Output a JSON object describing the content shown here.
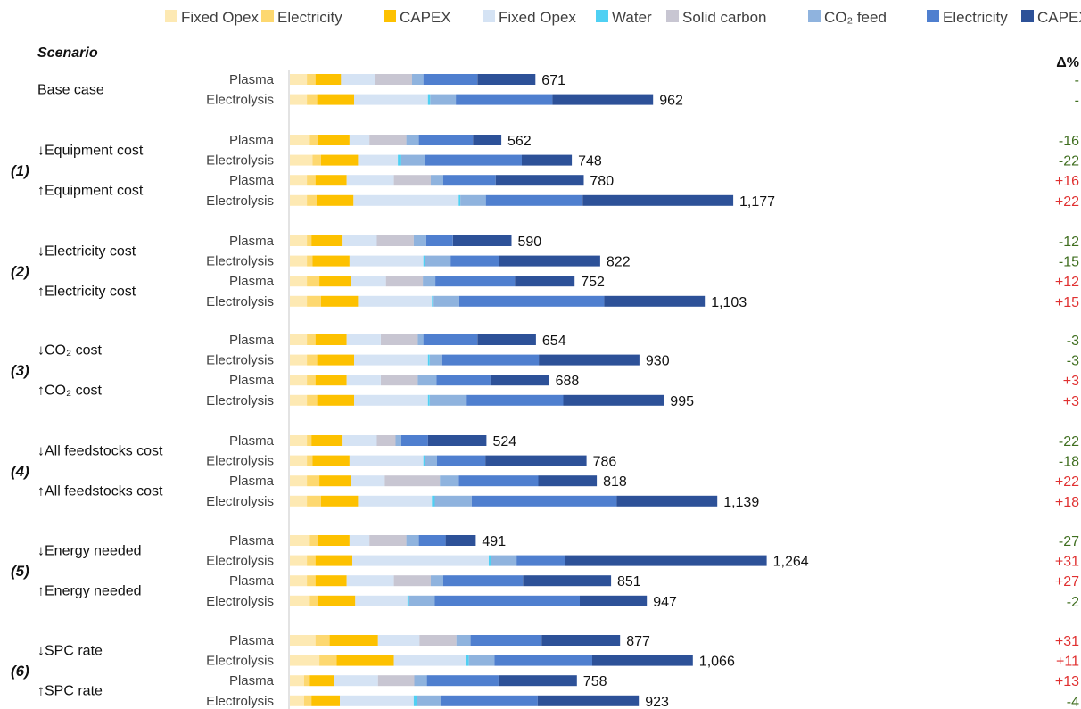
{
  "chart_data": {
    "type": "bar",
    "orientation": "horizontal",
    "stacked": true,
    "scenario_header": "Scenario",
    "delta_header": "Δ%",
    "legend": [
      {
        "name": "Fixed Opex",
        "color": "#fde9b3"
      },
      {
        "name": "Electricity",
        "color": "#fdd870"
      },
      {
        "name": "CAPEX",
        "color": "#fdc100"
      },
      {
        "name": "Fixed Opex",
        "color": "#d5e3f4"
      },
      {
        "name": "Water",
        "color": "#4fd0f3"
      },
      {
        "name": "Solid carbon",
        "color": "#c8c6d2"
      },
      {
        "name": "CO₂ feed",
        "color": "#8fb3de"
      },
      {
        "name": "Electricity",
        "color": "#4f7fcf"
      },
      {
        "name": "CAPEX",
        "color": "#2d5198"
      }
    ],
    "groups": [
      {
        "num": "",
        "scenarios": [
          {
            "label": "Base case",
            "rows": [
              {
                "tech": "Plasma",
                "total": "671",
                "delta": "-",
                "segments": [
                  30,
                  15,
                  45,
                  60,
                  0,
                  65,
                  20,
                  95,
                  102
                ]
              },
              {
                "tech": "Electrolysis",
                "total": "962",
                "delta": "-",
                "segments": [
                  30,
                  18,
                  65,
                  130,
                  4,
                  0,
                  45,
                  170,
                  177
                ]
              }
            ]
          }
        ]
      },
      {
        "num": "(1)",
        "scenarios": [
          {
            "label": "↓Equipment cost",
            "rows": [
              {
                "tech": "Plasma",
                "total": "562",
                "delta": "-16",
                "segments": [
                  35,
                  15,
                  55,
                  35,
                  0,
                  65,
                  22,
                  95,
                  50
                ]
              },
              {
                "tech": "Electrolysis",
                "total": "748",
                "delta": "-22",
                "segments": [
                  40,
                  15,
                  65,
                  70,
                  6,
                  0,
                  42,
                  170,
                  88
                ]
              }
            ]
          },
          {
            "label": "↑Equipment cost",
            "rows": [
              {
                "tech": "Plasma",
                "total": "780",
                "delta": "+16",
                "segments": [
                  30,
                  15,
                  55,
                  83,
                  0,
                  65,
                  22,
                  92,
                  155
                ]
              },
              {
                "tech": "Electrolysis",
                "total": "1,177",
                "delta": "+22",
                "segments": [
                  30,
                  17,
                  65,
                  185,
                  3,
                  0,
                  45,
                  170,
                  265
                ]
              }
            ]
          }
        ]
      },
      {
        "num": "(2)",
        "scenarios": [
          {
            "label": "↓Electricity cost",
            "rows": [
              {
                "tech": "Plasma",
                "total": "590",
                "delta": "-12",
                "segments": [
                  30,
                  8,
                  55,
                  60,
                  0,
                  65,
                  22,
                  47,
                  103
                ]
              },
              {
                "tech": "Electrolysis",
                "total": "822",
                "delta": "-15",
                "segments": [
                  30,
                  10,
                  65,
                  130,
                  3,
                  0,
                  45,
                  85,
                  178
                ]
              }
            ]
          },
          {
            "label": "↑Electricity cost",
            "rows": [
              {
                "tech": "Plasma",
                "total": "752",
                "delta": "+12",
                "segments": [
                  30,
                  22,
                  55,
                  62,
                  0,
                  65,
                  22,
                  140,
                  105
                ]
              },
              {
                "tech": "Electrolysis",
                "total": "1,103",
                "delta": "+15",
                "segments": [
                  30,
                  25,
                  65,
                  130,
                  3,
                  0,
                  45,
                  255,
                  177
                ]
              }
            ]
          }
        ]
      },
      {
        "num": "(3)",
        "scenarios": [
          {
            "label": "↓CO₂ cost",
            "rows": [
              {
                "tech": "Plasma",
                "total": "654",
                "delta": "-3",
                "segments": [
                  30,
                  15,
                  55,
                  60,
                  0,
                  65,
                  10,
                  95,
                  103
                ]
              },
              {
                "tech": "Electrolysis",
                "total": "930",
                "delta": "-3",
                "segments": [
                  30,
                  18,
                  65,
                  130,
                  3,
                  0,
                  22,
                  170,
                  177
                ]
              }
            ]
          },
          {
            "label": "↑CO₂ cost",
            "rows": [
              {
                "tech": "Plasma",
                "total": "688",
                "delta": "+3",
                "segments": [
                  30,
                  15,
                  55,
                  60,
                  0,
                  65,
                  33,
                  95,
                  103
                ]
              },
              {
                "tech": "Electrolysis",
                "total": "995",
                "delta": "+3",
                "segments": [
                  30,
                  18,
                  65,
                  130,
                  3,
                  0,
                  65,
                  170,
                  177
                ]
              }
            ]
          }
        ]
      },
      {
        "num": "(4)",
        "scenarios": [
          {
            "label": "↓All feedstocks cost",
            "rows": [
              {
                "tech": "Plasma",
                "total": "524",
                "delta": "-22",
                "segments": [
                  30,
                  8,
                  55,
                  60,
                  0,
                  33,
                  10,
                  47,
                  103
                ]
              },
              {
                "tech": "Electrolysis",
                "total": "786",
                "delta": "-18",
                "segments": [
                  30,
                  10,
                  65,
                  130,
                  2,
                  0,
                  22,
                  85,
                  178
                ]
              }
            ]
          },
          {
            "label": "↑All feedstocks cost",
            "rows": [
              {
                "tech": "Plasma",
                "total": "818",
                "delta": "+22",
                "segments": [
                  30,
                  22,
                  55,
                  60,
                  0,
                  97,
                  33,
                  140,
                  103
                ]
              },
              {
                "tech": "Electrolysis",
                "total": "1,139",
                "delta": "+18",
                "segments": [
                  30,
                  25,
                  65,
                  130,
                  5,
                  0,
                  65,
                  255,
                  177
                ]
              }
            ]
          }
        ]
      },
      {
        "num": "(5)",
        "scenarios": [
          {
            "label": "↓Energy needed",
            "rows": [
              {
                "tech": "Plasma",
                "total": "491",
                "delta": "-27",
                "segments": [
                  35,
                  15,
                  55,
                  35,
                  0,
                  65,
                  22,
                  47,
                  53
                ]
              },
              {
                "tech": "Electrolysis",
                "total": "1,264",
                "delta": "+31",
                "segments": [
                  30,
                  15,
                  65,
                  240,
                  4,
                  0,
                  45,
                  85,
                  355
                ]
              }
            ]
          },
          {
            "label": "↑Energy needed",
            "rows": [
              {
                "tech": "Plasma",
                "total": "851",
                "delta": "+27",
                "segments": [
                  30,
                  15,
                  55,
                  83,
                  0,
                  65,
                  22,
                  140,
                  155
                ]
              },
              {
                "tech": "Electrolysis",
                "total": "947",
                "delta": "-2",
                "segments": [
                  35,
                  15,
                  65,
                  92,
                  3,
                  0,
                  45,
                  255,
                  118
                ]
              }
            ]
          }
        ]
      },
      {
        "num": "(6)",
        "scenarios": [
          {
            "label": "↓SPC rate",
            "rows": [
              {
                "tech": "Plasma",
                "total": "877",
                "delta": "+31",
                "segments": [
                  45,
                  25,
                  85,
                  73,
                  0,
                  65,
                  25,
                  125,
                  138
                ]
              },
              {
                "tech": "Electrolysis",
                "total": "1,066",
                "delta": "+11",
                "segments": [
                  52,
                  30,
                  101,
                  127,
                  5,
                  0,
                  45,
                  172,
                  177
                ]
              }
            ]
          },
          {
            "label": "↑SPC rate",
            "rows": [
              {
                "tech": "Plasma",
                "total": "758",
                "delta": "+13",
                "segments": [
                  25,
                  10,
                  42,
                  78,
                  0,
                  64,
                  22,
                  126,
                  138
                ]
              },
              {
                "tech": "Electrolysis",
                "total": "923",
                "delta": "-4",
                "segments": [
                  25,
                  13,
                  50,
                  130,
                  5,
                  0,
                  43,
                  170,
                  178
                ]
              }
            ]
          }
        ]
      }
    ]
  }
}
